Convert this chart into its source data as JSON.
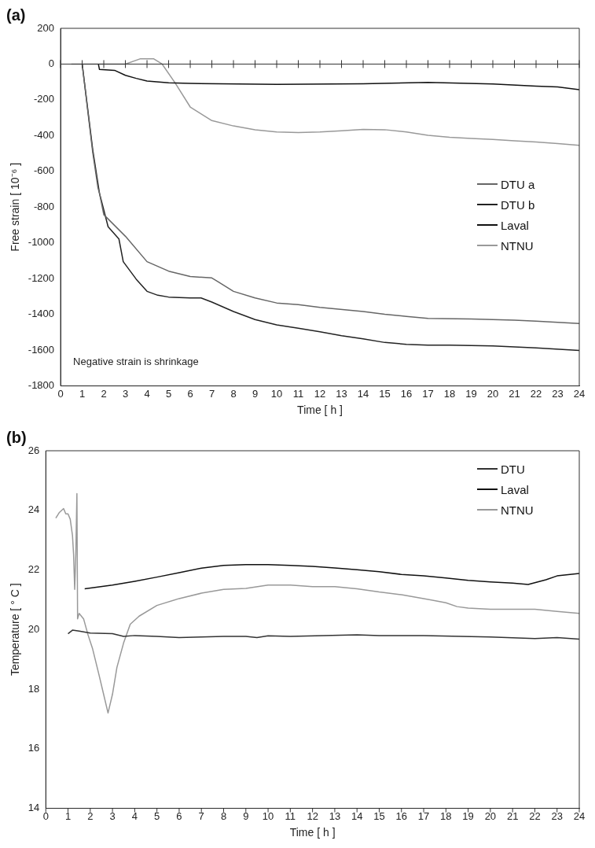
{
  "chart_data": [
    {
      "type": "line",
      "title": "(a)",
      "xlabel": "Time [ h ]",
      "ylabel": "Free strain [ 10⁻⁶ ]",
      "xlim": [
        0,
        24
      ],
      "xticks": [
        0,
        1,
        2,
        3,
        4,
        5,
        6,
        7,
        8,
        9,
        10,
        11,
        12,
        13,
        14,
        15,
        16,
        17,
        18,
        19,
        20,
        21,
        22,
        23,
        24
      ],
      "ylim": [
        -1800,
        200
      ],
      "yticks": [
        -1800,
        -1600,
        -1400,
        -1200,
        -1000,
        -800,
        -600,
        -400,
        -200,
        0,
        200
      ],
      "grid": false,
      "legend": "right",
      "marker": "none",
      "line_style": "solid",
      "annotations": [
        "Negative strain is shrinkage"
      ],
      "ref_lines": [
        {
          "axis": "y",
          "value": 0
        }
      ],
      "series": [
        {
          "name": "DTU a",
          "color": "#666666",
          "x": [
            1,
            1.49,
            1.73,
            1.8,
            2,
            3,
            4,
            5,
            6,
            7,
            7.3,
            8,
            9,
            10,
            11,
            12,
            14,
            15,
            16,
            17,
            19,
            21,
            22,
            24
          ],
          "values": [
            0,
            -496,
            -692,
            -722,
            -842,
            -963,
            -1105,
            -1158,
            -1188,
            -1196,
            -1218,
            -1271,
            -1308,
            -1336,
            -1345,
            -1361,
            -1384,
            -1399,
            -1411,
            -1422,
            -1426,
            -1432,
            -1438,
            -1451
          ]
        },
        {
          "name": "DTU b",
          "color": "#222222",
          "x": [
            1,
            1.49,
            1.8,
            2.2,
            2.7,
            2.9,
            3.5,
            4,
            4.5,
            5,
            6,
            6.5,
            7,
            8,
            9,
            10,
            11,
            12,
            13,
            14,
            15,
            16,
            17,
            18,
            20,
            22,
            24
          ],
          "values": [
            0,
            -480,
            -722,
            -910,
            -978,
            -1105,
            -1203,
            -1271,
            -1293,
            -1303,
            -1308,
            -1308,
            -1331,
            -1384,
            -1429,
            -1459,
            -1477,
            -1497,
            -1519,
            -1537,
            -1557,
            -1567,
            -1572,
            -1572,
            -1576,
            -1587,
            -1602
          ]
        },
        {
          "name": "Laval",
          "color": "#111111",
          "x": [
            1.75,
            1.8,
            2.5,
            3,
            3.5,
            4,
            5,
            6,
            10,
            14,
            17,
            20,
            22,
            23,
            24
          ],
          "values": [
            0,
            -30,
            -35,
            -63,
            -80,
            -95,
            -105,
            -108,
            -113,
            -110,
            -102,
            -111,
            -123,
            -128,
            -143
          ]
        },
        {
          "name": "NTNU",
          "color": "#999999",
          "x": [
            0.5,
            3,
            3.7,
            4.3,
            4.7,
            5.3,
            6,
            7,
            8,
            9,
            10,
            11,
            12,
            13,
            14,
            15,
            16,
            17,
            18,
            19,
            20,
            21,
            22,
            23,
            24
          ],
          "values": [
            0,
            0,
            30,
            30,
            0,
            -105,
            -240,
            -316,
            -346,
            -368,
            -380,
            -383,
            -380,
            -373,
            -365,
            -367,
            -380,
            -398,
            -409,
            -416,
            -421,
            -429,
            -436,
            -444,
            -454
          ]
        }
      ]
    },
    {
      "type": "line",
      "title": "(b)",
      "xlabel": "Time [ h ]",
      "ylabel": "Temperature [ ° C ]",
      "xlim": [
        0,
        24
      ],
      "xticks": [
        0,
        1,
        2,
        3,
        4,
        5,
        6,
        7,
        8,
        9,
        10,
        11,
        12,
        13,
        14,
        15,
        16,
        17,
        18,
        19,
        20,
        21,
        22,
        23,
        24
      ],
      "ylim": [
        14,
        26
      ],
      "yticks": [
        14,
        16,
        18,
        20,
        22,
        24,
        26
      ],
      "grid": false,
      "legend": "top right",
      "marker": "none",
      "line_style": "solid",
      "series": [
        {
          "name": "DTU",
          "color": "#333333",
          "x": [
            1,
            1.2,
            1.5,
            2,
            3,
            3.5,
            4,
            5,
            6,
            7,
            8,
            9,
            9.5,
            10,
            11,
            14,
            15,
            17,
            20,
            22,
            23,
            24
          ],
          "values": [
            19.86,
            19.98,
            19.95,
            19.88,
            19.86,
            19.77,
            19.8,
            19.77,
            19.73,
            19.75,
            19.77,
            19.77,
            19.73,
            19.79,
            19.77,
            19.82,
            19.8,
            19.8,
            19.75,
            19.7,
            19.73,
            19.68
          ]
        },
        {
          "name": "Laval",
          "color": "#111111",
          "x": [
            1.75,
            3,
            4,
            5,
            6,
            7,
            8,
            9,
            10,
            11,
            12,
            13,
            14,
            15,
            16,
            17,
            18,
            19,
            20,
            21,
            21.7,
            22.5,
            23,
            24
          ],
          "values": [
            21.37,
            21.49,
            21.62,
            21.76,
            21.91,
            22.06,
            22.15,
            22.18,
            22.18,
            22.15,
            22.12,
            22.07,
            22.01,
            21.94,
            21.85,
            21.8,
            21.73,
            21.65,
            21.6,
            21.56,
            21.51,
            21.67,
            21.8,
            21.88
          ]
        },
        {
          "name": "NTNU",
          "color": "#999999",
          "x": [
            0.45,
            0.6,
            0.8,
            0.9,
            1,
            1.1,
            1.15,
            1.2,
            1.25,
            1.3,
            1.35,
            1.4,
            1.43,
            1.5,
            1.7,
            1.9,
            2.1,
            2.4,
            2.6,
            2.8,
            3,
            3.2,
            3.5,
            3.8,
            4.2,
            5,
            6,
            7,
            8,
            9,
            10,
            11,
            12,
            13,
            14,
            15,
            16,
            17,
            18,
            18.5,
            19,
            20,
            21,
            22,
            23,
            24
          ],
          "values": [
            23.74,
            23.92,
            24.06,
            23.88,
            23.88,
            23.7,
            23.43,
            23.16,
            22.53,
            21.35,
            22.53,
            24.56,
            20.36,
            20.54,
            20.36,
            19.82,
            19.37,
            18.46,
            17.83,
            17.2,
            17.83,
            18.73,
            19.55,
            20.18,
            20.45,
            20.81,
            21.04,
            21.22,
            21.35,
            21.38,
            21.49,
            21.49,
            21.44,
            21.44,
            21.37,
            21.26,
            21.17,
            21.04,
            20.9,
            20.77,
            20.72,
            20.68,
            20.68,
            20.68,
            20.61,
            20.54
          ]
        }
      ]
    }
  ]
}
